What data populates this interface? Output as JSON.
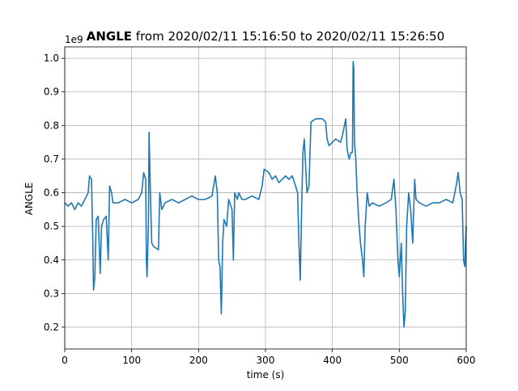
{
  "chart_data": {
    "type": "line",
    "title_variable": "ANGLE",
    "title_range": "from 2020/02/11 15:16:50 to 2020/02/11 15:26:50",
    "y_offset_label": "1e9",
    "xlabel": "time (s)",
    "ylabel": "ANGLE",
    "x": [
      0,
      5,
      10,
      15,
      20,
      25,
      30,
      35,
      37,
      40,
      42,
      43,
      45,
      47,
      50,
      53,
      55,
      58,
      62,
      65,
      67,
      70,
      72,
      80,
      90,
      100,
      110,
      115,
      118,
      121,
      122,
      123,
      125,
      126,
      128,
      130,
      133,
      140,
      142,
      145,
      150,
      160,
      170,
      180,
      190,
      200,
      210,
      220,
      225,
      228,
      230,
      232,
      234,
      236,
      238,
      242,
      245,
      250,
      252,
      254,
      258,
      260,
      265,
      270,
      280,
      290,
      295,
      298,
      305,
      310,
      315,
      320,
      325,
      330,
      335,
      340,
      345,
      348,
      350,
      352,
      354,
      356,
      358,
      362,
      365,
      368,
      375,
      385,
      390,
      392,
      395,
      405,
      412,
      415,
      418,
      420,
      422,
      425,
      428,
      430,
      431,
      432,
      433,
      435,
      437,
      440,
      442,
      445,
      447,
      449,
      452,
      455,
      460,
      470,
      480,
      488,
      492,
      495,
      498,
      500,
      503,
      505,
      507,
      509,
      511,
      514,
      517,
      520,
      523,
      525,
      530,
      540,
      550,
      560,
      570,
      580,
      585,
      588,
      591,
      594,
      596,
      598,
      599,
      600
    ],
    "series": [
      {
        "name": "ANGLE",
        "color": "#1f77b4",
        "values": [
          0.57,
          0.56,
          0.57,
          0.55,
          0.57,
          0.56,
          0.58,
          0.6,
          0.65,
          0.64,
          0.45,
          0.31,
          0.35,
          0.52,
          0.53,
          0.36,
          0.5,
          0.52,
          0.53,
          0.4,
          0.62,
          0.6,
          0.57,
          0.57,
          0.58,
          0.57,
          0.58,
          0.6,
          0.66,
          0.64,
          0.4,
          0.35,
          0.5,
          0.78,
          0.6,
          0.45,
          0.44,
          0.43,
          0.6,
          0.55,
          0.57,
          0.58,
          0.57,
          0.58,
          0.59,
          0.58,
          0.58,
          0.59,
          0.65,
          0.6,
          0.4,
          0.38,
          0.24,
          0.45,
          0.52,
          0.5,
          0.58,
          0.55,
          0.4,
          0.6,
          0.58,
          0.6,
          0.58,
          0.58,
          0.59,
          0.58,
          0.62,
          0.67,
          0.66,
          0.64,
          0.65,
          0.63,
          0.64,
          0.65,
          0.64,
          0.65,
          0.62,
          0.6,
          0.45,
          0.34,
          0.55,
          0.72,
          0.76,
          0.6,
          0.62,
          0.81,
          0.82,
          0.82,
          0.81,
          0.76,
          0.74,
          0.76,
          0.75,
          0.77,
          0.8,
          0.82,
          0.73,
          0.7,
          0.72,
          0.72,
          0.99,
          0.97,
          0.75,
          0.7,
          0.6,
          0.5,
          0.45,
          0.4,
          0.35,
          0.5,
          0.6,
          0.56,
          0.57,
          0.56,
          0.57,
          0.58,
          0.64,
          0.55,
          0.4,
          0.35,
          0.45,
          0.3,
          0.2,
          0.25,
          0.5,
          0.6,
          0.55,
          0.45,
          0.64,
          0.58,
          0.57,
          0.56,
          0.57,
          0.57,
          0.58,
          0.57,
          0.62,
          0.66,
          0.6,
          0.58,
          0.4,
          0.38,
          0.45,
          0.5
        ]
      }
    ],
    "xlim": [
      0,
      600
    ],
    "ylim": [
      0.135,
      1.034
    ],
    "xticks": [
      0,
      100,
      200,
      300,
      400,
      500,
      600
    ],
    "yticks": [
      0.2,
      0.3,
      0.4,
      0.5,
      0.6,
      0.7,
      0.8,
      0.9,
      {
        "value": 1.0,
        "label": "1.0"
      }
    ],
    "grid": true
  }
}
